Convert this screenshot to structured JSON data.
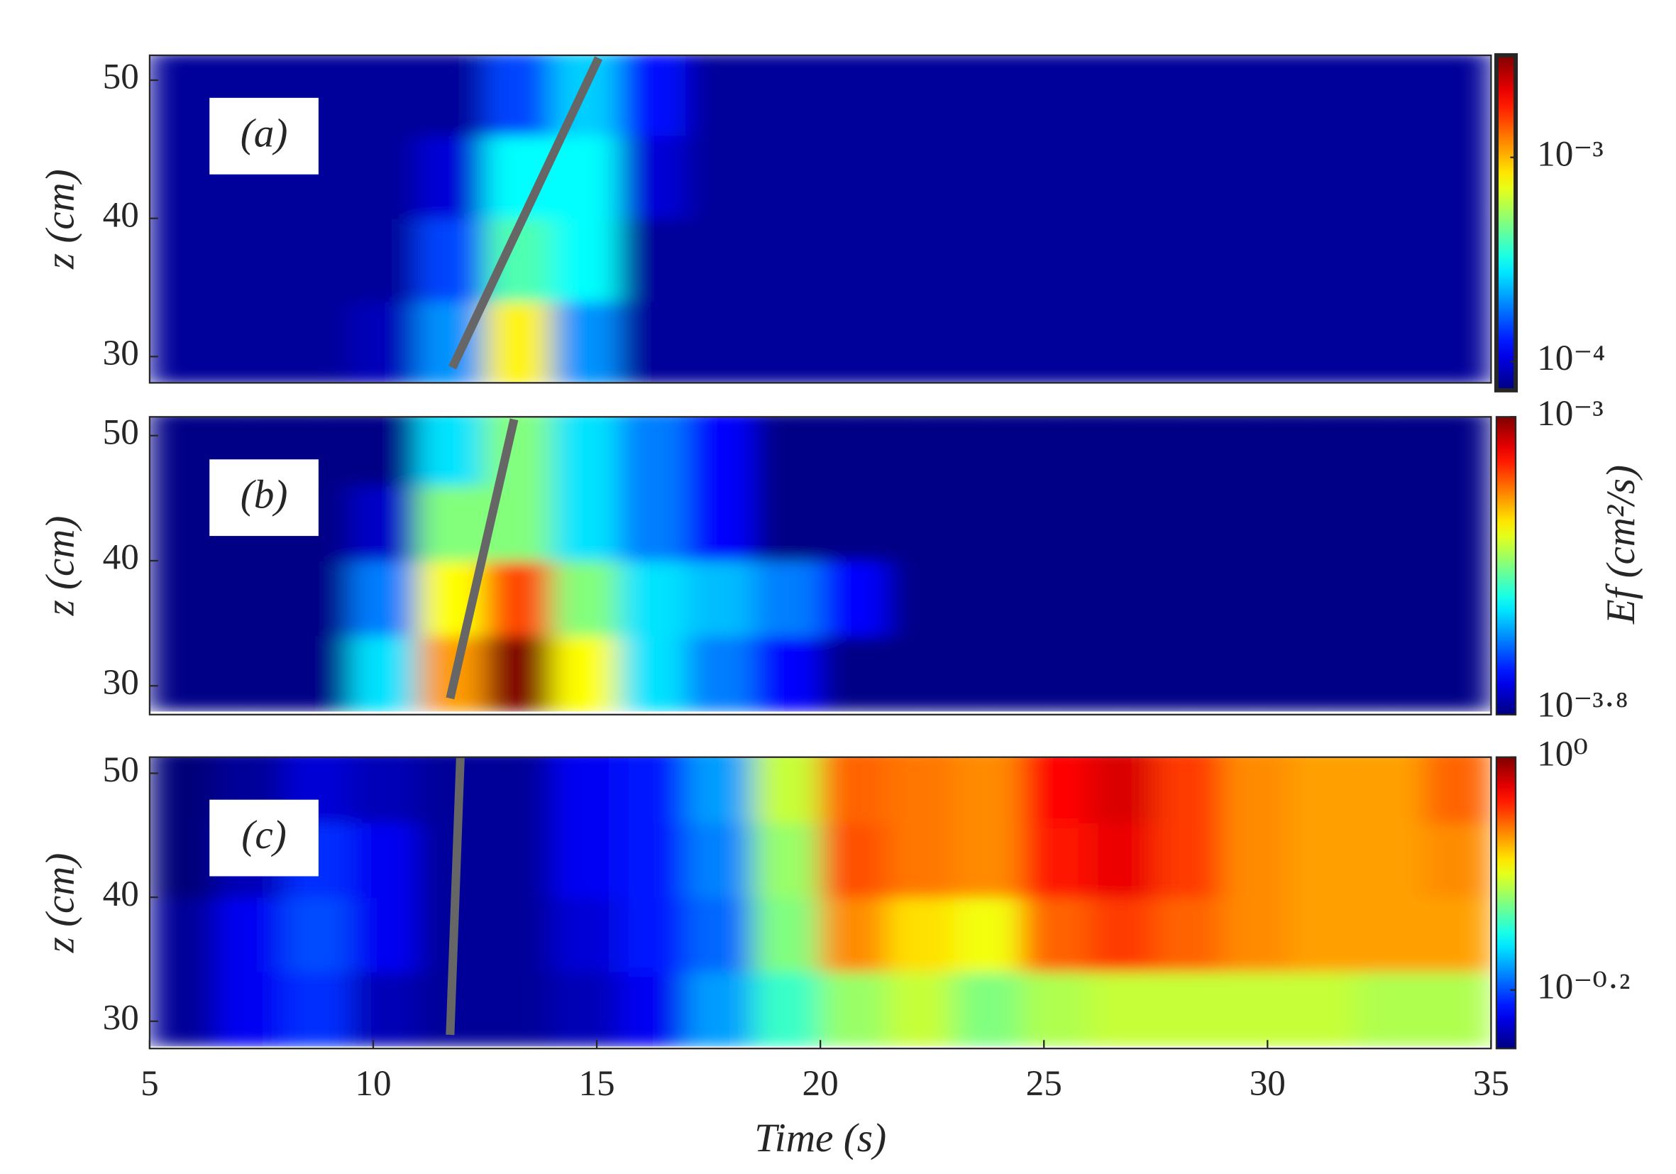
{
  "chart_data": [
    {
      "type": "heatmap",
      "panel_label": "(a)",
      "ylabel": "z (cm)",
      "x": [
        5.75,
        7.25,
        8.75,
        10.25,
        11.75,
        13.25,
        14.75,
        16.25,
        17.75,
        19.25,
        20.75,
        22.25,
        23.75,
        25.25,
        26.75,
        28.25,
        29.75,
        31.25,
        32.75,
        34.25
      ],
      "y": [
        31,
        37,
        43,
        49
      ],
      "values": [
        [
          8e-05,
          8e-05,
          8e-05,
          9e-05,
          0.0002,
          0.0008,
          0.0002,
          8e-05,
          8e-05,
          8e-05,
          8e-05,
          8e-05,
          8e-05,
          8e-05,
          8e-05,
          8e-05,
          8e-05,
          8e-05,
          8e-05,
          8e-05
        ],
        [
          8e-05,
          8e-05,
          8e-05,
          8e-05,
          0.00015,
          0.0004,
          0.0003,
          8e-05,
          8e-05,
          8e-05,
          8e-05,
          8e-05,
          8e-05,
          8e-05,
          8e-05,
          8e-05,
          8e-05,
          8e-05,
          8e-05,
          8e-05
        ],
        [
          8e-05,
          8e-05,
          8e-05,
          8e-05,
          0.0001,
          0.0003,
          0.0003,
          0.0001,
          8e-05,
          8e-05,
          8e-05,
          8e-05,
          8e-05,
          8e-05,
          8e-05,
          8e-05,
          8e-05,
          8e-05,
          8e-05,
          8e-05
        ],
        [
          8e-05,
          8e-05,
          8e-05,
          8e-05,
          8e-05,
          0.00015,
          0.00025,
          0.00012,
          8e-05,
          8e-05,
          8e-05,
          8e-05,
          8e-05,
          8e-05,
          8e-05,
          8e-05,
          8e-05,
          8e-05,
          8e-05,
          8e-05
        ]
      ],
      "xlim": [
        5,
        35
      ],
      "ylim": [
        28.1,
        51.8
      ],
      "yticks": [
        30,
        40,
        50
      ],
      "clim": [
        7.24e-05,
        0.00316
      ],
      "color_scale": "log",
      "colormap": "jet",
      "cticks": [
        {
          "value": 0.001,
          "label": "10⁻³"
        },
        {
          "value": 0.0001,
          "label": "10⁻⁴"
        }
      ],
      "line": {
        "x": [
          11.77,
          15.04
        ],
        "y": [
          29.2,
          51.6
        ],
        "color": "#666666"
      }
    },
    {
      "type": "heatmap",
      "panel_label": "(b)",
      "ylabel": "z (cm)",
      "x": [
        5.75,
        7.25,
        8.75,
        10.25,
        11.75,
        13.25,
        14.75,
        16.25,
        17.75,
        19.25,
        20.75,
        22.25,
        23.75,
        25.25,
        26.75,
        28.25,
        29.75,
        31.25,
        32.75,
        34.25
      ],
      "y": [
        31,
        37,
        43,
        49
      ],
      "values": [
        [
          0.00016,
          0.00016,
          0.00016,
          0.0003,
          0.0006,
          0.001,
          0.0005,
          0.0003,
          0.00025,
          0.0002,
          0.00016,
          0.00016,
          0.00016,
          0.00016,
          0.00016,
          0.00016,
          0.00016,
          0.00016,
          0.00016,
          0.00016
        ],
        [
          0.00016,
          0.00016,
          0.00016,
          0.00025,
          0.0005,
          0.0007,
          0.0004,
          0.0003,
          0.00028,
          0.00025,
          0.0002,
          0.00016,
          0.00016,
          0.00016,
          0.00016,
          0.00016,
          0.00016,
          0.00016,
          0.00016,
          0.00016
        ],
        [
          0.00016,
          0.00016,
          0.00016,
          0.00018,
          0.0004,
          0.0004,
          0.0003,
          0.00025,
          0.0002,
          0.00016,
          0.00016,
          0.00016,
          0.00016,
          0.00016,
          0.00016,
          0.00016,
          0.00016,
          0.00016,
          0.00016,
          0.00016
        ],
        [
          0.00016,
          0.00016,
          0.00016,
          0.00016,
          0.0003,
          0.0004,
          0.0003,
          0.00025,
          0.0002,
          0.00016,
          0.00016,
          0.00016,
          0.00016,
          0.00016,
          0.00016,
          0.00016,
          0.00016,
          0.00016,
          0.00016,
          0.00016
        ]
      ],
      "xlim": [
        5,
        35
      ],
      "ylim": [
        27.7,
        51.5
      ],
      "yticks": [
        30,
        40,
        50
      ],
      "clim": [
        0.000158,
        0.001
      ],
      "color_scale": "log",
      "colormap": "jet",
      "cticks": [
        {
          "value": 0.001,
          "label": "10⁻³"
        },
        {
          "value": 0.000158,
          "label": "10⁻³·⁸"
        }
      ],
      "colorbar_label": "Ef (cm²/s)",
      "line": {
        "x": [
          11.72,
          13.15
        ],
        "y": [
          29.0,
          51.3
        ],
        "color": "#666666"
      }
    },
    {
      "type": "heatmap",
      "panel_label": "(c)",
      "ylabel": "z (cm)",
      "xlabel": "Time (s)",
      "x": [
        5.75,
        7.25,
        8.75,
        10.25,
        11.75,
        13.25,
        14.75,
        16.25,
        17.75,
        19.25,
        20.75,
        22.25,
        23.75,
        25.25,
        26.75,
        28.25,
        29.75,
        31.25,
        32.75,
        34.25
      ],
      "y": [
        31,
        37,
        43,
        49
      ],
      "values": [
        [
          0.57,
          0.6,
          0.62,
          0.58,
          0.57,
          0.57,
          0.58,
          0.6,
          0.66,
          0.72,
          0.76,
          0.78,
          0.75,
          0.77,
          0.78,
          0.78,
          0.78,
          0.78,
          0.77,
          0.77
        ],
        [
          0.57,
          0.6,
          0.63,
          0.6,
          0.57,
          0.57,
          0.59,
          0.61,
          0.64,
          0.75,
          0.86,
          0.82,
          0.8,
          0.88,
          0.9,
          0.88,
          0.86,
          0.85,
          0.85,
          0.85
        ],
        [
          0.56,
          0.58,
          0.62,
          0.6,
          0.57,
          0.57,
          0.6,
          0.61,
          0.65,
          0.76,
          0.89,
          0.87,
          0.86,
          0.92,
          0.94,
          0.9,
          0.86,
          0.85,
          0.85,
          0.86
        ],
        [
          0.56,
          0.57,
          0.59,
          0.58,
          0.57,
          0.57,
          0.6,
          0.61,
          0.66,
          0.78,
          0.88,
          0.87,
          0.86,
          0.93,
          0.95,
          0.9,
          0.86,
          0.85,
          0.85,
          0.88
        ]
      ],
      "xlim": [
        5,
        35
      ],
      "xticks": [
        5,
        10,
        15,
        20,
        25,
        30,
        35
      ],
      "ylim": [
        27.8,
        51.3
      ],
      "yticks": [
        30,
        40,
        50
      ],
      "clim": [
        0.562,
        1
      ],
      "color_scale": "log",
      "colormap": "jet",
      "cticks": [
        {
          "value": 1,
          "label": "10⁰"
        },
        {
          "value": 0.631,
          "label": "10⁻⁰·²"
        }
      ],
      "line": {
        "x": [
          11.72,
          11.95
        ],
        "y": [
          28.9,
          51.3
        ],
        "color": "#666666"
      }
    }
  ]
}
